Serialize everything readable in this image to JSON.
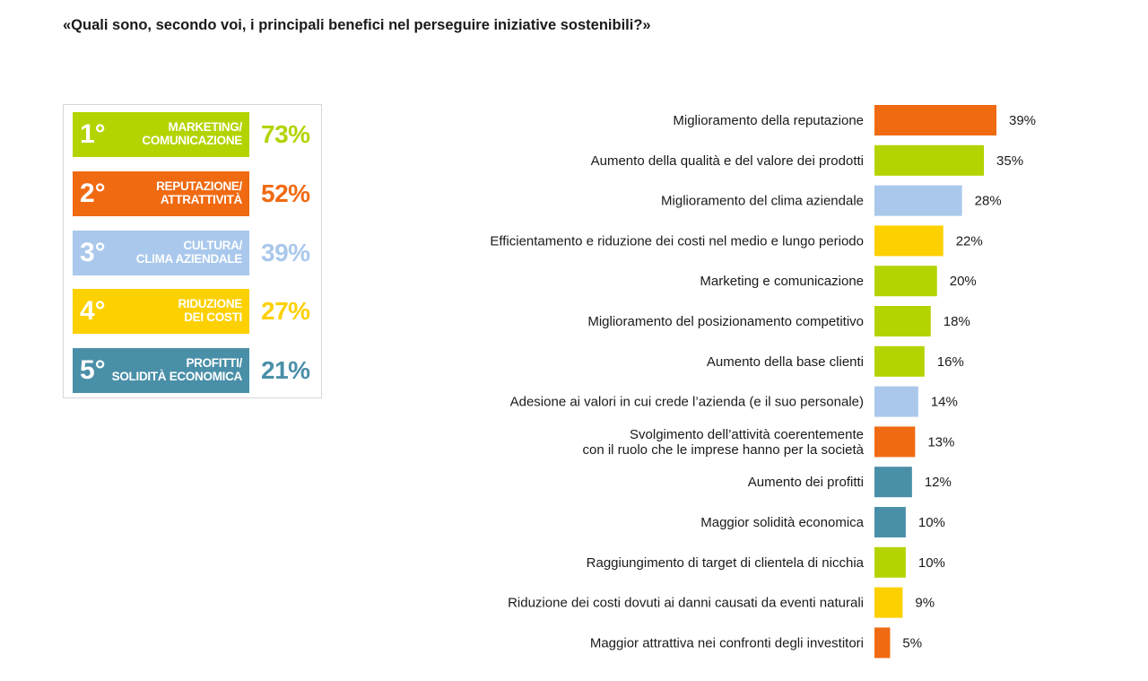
{
  "title": "«Quali sono, secondo voi, i principali benefici nel perseguire iniziative sostenibili?»",
  "colors": {
    "green": "#b5d300",
    "orange": "#f06a12",
    "lightblue": "#a9c8ec",
    "yellow": "#fdd000",
    "teal": "#4a8fa8"
  },
  "ranking": [
    {
      "rank": "1°",
      "line1": "MARKETING/",
      "line2": "COMUNICAZIONE",
      "percent": "73%",
      "color": "#b5d300"
    },
    {
      "rank": "2°",
      "line1": "REPUTAZIONE/",
      "line2": "ATTRATTIVITÀ",
      "percent": "52%",
      "color": "#f06a12"
    },
    {
      "rank": "3°",
      "line1": "CULTURA/",
      "line2": "CLIMA AZIENDALE",
      "percent": "39%",
      "color": "#a9c8ec"
    },
    {
      "rank": "4°",
      "line1": "RIDUZIONE",
      "line2": "DEI COSTI",
      "percent": "27%",
      "color": "#fdd000"
    },
    {
      "rank": "5°",
      "line1": "PROFITTI/",
      "line2": "SOLIDITÀ ECONOMICA",
      "percent": "21%",
      "color": "#4a8fa8"
    }
  ],
  "chart_data": {
    "type": "bar",
    "orientation": "horizontal",
    "title": "",
    "xlabel": "",
    "ylabel": "",
    "xlim": [
      0,
      40
    ],
    "grid": false,
    "legend": "none",
    "categories": [
      [
        "Miglioramento della reputazione"
      ],
      [
        "Aumento della qualità e del valore dei prodotti"
      ],
      [
        "Miglioramento del clima aziendale"
      ],
      [
        "Efficientamento e riduzione dei costi nel medio e lungo periodo"
      ],
      [
        "Marketing e comunicazione"
      ],
      [
        "Miglioramento del posizionamento competitivo"
      ],
      [
        "Aumento della base clienti"
      ],
      [
        "Adesione ai valori in cui crede l’azienda (e il suo personale)"
      ],
      [
        "Svolgimento dell’attività coerentemente",
        "con il ruolo che le imprese hanno per la società"
      ],
      [
        "Aumento dei profitti"
      ],
      [
        "Maggior solidità economica"
      ],
      [
        "Raggiungimento di target di clientela di nicchia"
      ],
      [
        "Riduzione dei costi dovuti ai danni causati da eventi naturali"
      ],
      [
        "Maggior attrattiva nei confronti degli investitori"
      ]
    ],
    "values": [
      39,
      35,
      28,
      22,
      20,
      18,
      16,
      14,
      13,
      12,
      10,
      10,
      9,
      5
    ],
    "value_labels": [
      "39%",
      "35%",
      "28%",
      "22%",
      "20%",
      "18%",
      "16%",
      "14%",
      "13%",
      "12%",
      "10%",
      "10%",
      "9%",
      "5%"
    ],
    "bar_colors": [
      "#f06a12",
      "#b5d300",
      "#a9c8ec",
      "#fdd000",
      "#b5d300",
      "#b5d300",
      "#b5d300",
      "#a9c8ec",
      "#f06a12",
      "#4a8fa8",
      "#4a8fa8",
      "#b5d300",
      "#fdd000",
      "#f06a12"
    ]
  }
}
